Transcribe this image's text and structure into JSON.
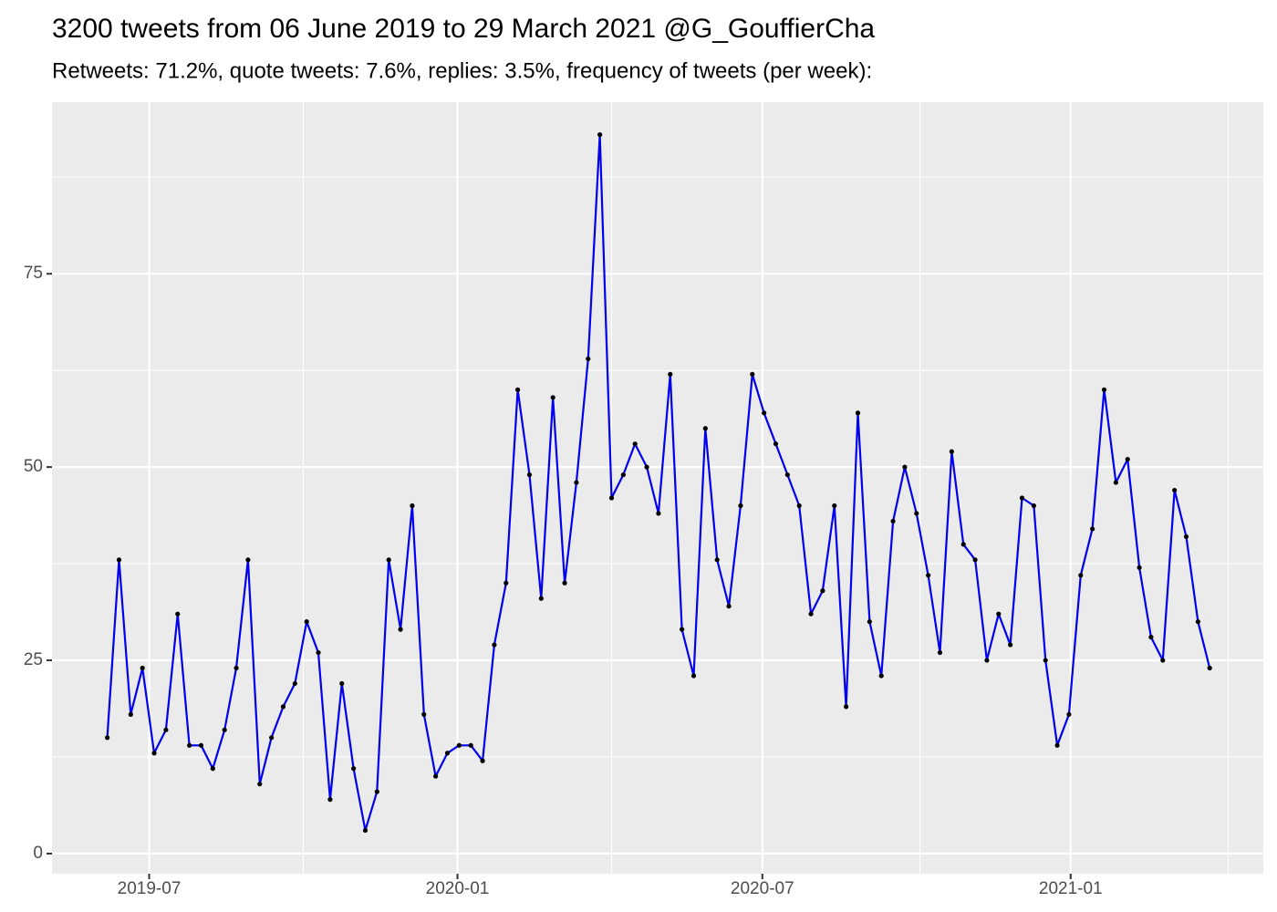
{
  "chart_data": {
    "type": "line",
    "title": "3200 tweets from 06 June 2019 to 29 March 2021 @G_GouffierCha",
    "subtitle": "Retweets: 71.2%, quote tweets: 7.6%, replies: 3.5%, frequency of tweets (per week):",
    "x": [
      "2019-06-06",
      "2019-06-13",
      "2019-06-20",
      "2019-06-27",
      "2019-07-04",
      "2019-07-11",
      "2019-07-18",
      "2019-07-25",
      "2019-08-01",
      "2019-08-08",
      "2019-08-15",
      "2019-08-22",
      "2019-08-29",
      "2019-09-05",
      "2019-09-12",
      "2019-09-19",
      "2019-09-26",
      "2019-10-03",
      "2019-10-10",
      "2019-10-17",
      "2019-10-24",
      "2019-10-31",
      "2019-11-07",
      "2019-11-14",
      "2019-11-21",
      "2019-11-28",
      "2019-12-05",
      "2019-12-12",
      "2019-12-19",
      "2019-12-26",
      "2020-01-02",
      "2020-01-09",
      "2020-01-16",
      "2020-01-23",
      "2020-01-30",
      "2020-02-06",
      "2020-02-13",
      "2020-02-20",
      "2020-02-27",
      "2020-03-05",
      "2020-03-12",
      "2020-03-19",
      "2020-03-26",
      "2020-04-02",
      "2020-04-09",
      "2020-04-16",
      "2020-04-23",
      "2020-04-30",
      "2020-05-07",
      "2020-05-14",
      "2020-05-21",
      "2020-05-28",
      "2020-06-04",
      "2020-06-11",
      "2020-06-18",
      "2020-06-25",
      "2020-07-02",
      "2020-07-09",
      "2020-07-16",
      "2020-07-23",
      "2020-07-30",
      "2020-08-06",
      "2020-08-13",
      "2020-08-20",
      "2020-08-27",
      "2020-09-03",
      "2020-09-10",
      "2020-09-17",
      "2020-09-24",
      "2020-10-01",
      "2020-10-08",
      "2020-10-15",
      "2020-10-22",
      "2020-10-29",
      "2020-11-05",
      "2020-11-12",
      "2020-11-19",
      "2020-11-26",
      "2020-12-03",
      "2020-12-10",
      "2020-12-17",
      "2020-12-24",
      "2020-12-31",
      "2021-01-07",
      "2021-01-14",
      "2021-01-21",
      "2021-01-28",
      "2021-02-04",
      "2021-02-11",
      "2021-02-18",
      "2021-02-25",
      "2021-03-04",
      "2021-03-11",
      "2021-03-18",
      "2021-03-25"
    ],
    "values": [
      15,
      38,
      18,
      24,
      13,
      16,
      31,
      14,
      14,
      11,
      16,
      24,
      38,
      9,
      15,
      19,
      22,
      30,
      26,
      7,
      22,
      11,
      3,
      8,
      38,
      29,
      45,
      18,
      10,
      13,
      14,
      14,
      12,
      27,
      35,
      60,
      49,
      33,
      59,
      35,
      48,
      64,
      93,
      46,
      49,
      53,
      50,
      44,
      62,
      29,
      23,
      55,
      38,
      32,
      45,
      62,
      57,
      53,
      49,
      45,
      31,
      34,
      45,
      19,
      57,
      30,
      23,
      43,
      50,
      44,
      36,
      26,
      52,
      40,
      38,
      25,
      31,
      27,
      46,
      45,
      25,
      14,
      18,
      36,
      42,
      60,
      48,
      51,
      37,
      28,
      25,
      47,
      41,
      30,
      24
    ],
    "color": "#0000ee",
    "point_color": "#000000",
    "xlim": [
      "2019-05-04",
      "2021-04-26"
    ],
    "xticks": [
      "2019-07",
      "2020-01",
      "2020-07",
      "2021-01"
    ],
    "ylim": [
      -2.6,
      97.2
    ],
    "yticks": [
      0,
      25,
      50,
      75
    ],
    "grid": true
  }
}
